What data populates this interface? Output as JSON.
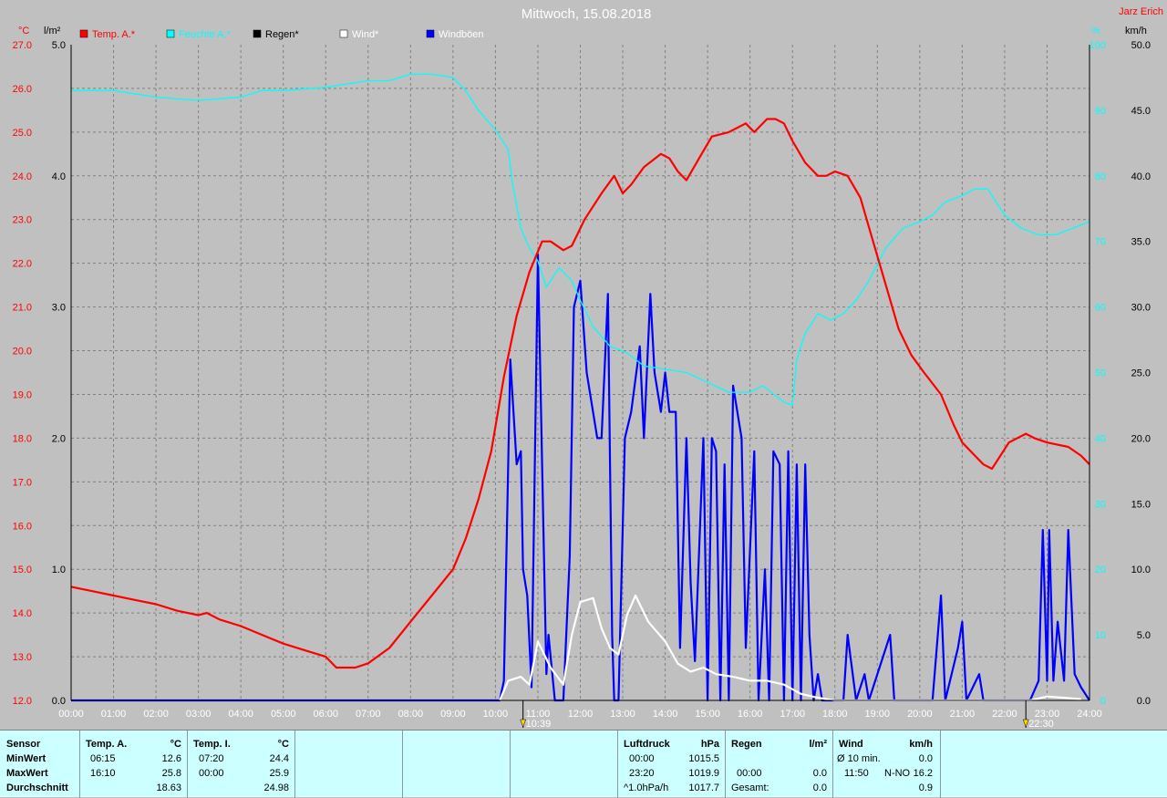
{
  "header": {
    "title": "Mittwoch, 15.08.2018",
    "author": "Jarz Erich",
    "left_unit_temp": "°C",
    "left_unit_rain": "l/m²",
    "right_unit_pct": "%",
    "right_unit_speed": "km/h"
  },
  "legend": [
    {
      "label": "Temp. A.*",
      "color": "#ff0000",
      "text_color": "#ff0000"
    },
    {
      "label": "Feuchte A.*",
      "color": "#00ffff",
      "text_color": "#00ffff"
    },
    {
      "label": "Regen*",
      "color": "#000000",
      "text_color": "#000000"
    },
    {
      "label": "Wind*",
      "color": "#ffffff",
      "text_color": "#ffffff"
    },
    {
      "label": "Windböen",
      "color": "#0000ff",
      "text_color": "#ffffff"
    }
  ],
  "events": [
    {
      "time": "10:39",
      "hour": 10.65
    },
    {
      "time": "22:30",
      "hour": 22.5
    }
  ],
  "chart_data": {
    "type": "line",
    "x_unit": "hours",
    "x_ticks": [
      "00:00",
      "01:00",
      "02:00",
      "03:00",
      "04:00",
      "05:00",
      "06:00",
      "07:00",
      "08:00",
      "09:00",
      "10:00",
      "11:00",
      "12:00",
      "13:00",
      "14:00",
      "15:00",
      "16:00",
      "17:00",
      "18:00",
      "19:00",
      "20:00",
      "21:00",
      "22:00",
      "23:00",
      "24:00"
    ],
    "xlim": [
      0,
      24
    ],
    "axes": {
      "temperature": {
        "unit": "°C",
        "lim": [
          12.0,
          27.0
        ],
        "ticks": [
          "12.0",
          "13.0",
          "14.0",
          "15.0",
          "16.0",
          "17.0",
          "18.0",
          "19.0",
          "20.0",
          "21.0",
          "22.0",
          "23.0",
          "24.0",
          "25.0",
          "26.0",
          "27.0"
        ],
        "color": "#ff0000"
      },
      "rain": {
        "unit": "l/m²",
        "lim": [
          0.0,
          5.0
        ],
        "ticks": [
          "0.0",
          "1.0",
          "2.0",
          "3.0",
          "4.0",
          "5.0"
        ],
        "color": "#000000"
      },
      "humidity": {
        "unit": "%",
        "lim": [
          0,
          100
        ],
        "ticks": [
          "0",
          "10",
          "20",
          "30",
          "40",
          "50",
          "60",
          "70",
          "80",
          "90",
          "100"
        ],
        "color": "#00ffff"
      },
      "speed": {
        "unit": "km/h",
        "lim": [
          0.0,
          50.0
        ],
        "ticks": [
          "0.0",
          "5.0",
          "10.0",
          "15.0",
          "20.0",
          "25.0",
          "30.0",
          "35.0",
          "40.0",
          "45.0",
          "50.0"
        ],
        "color": "#000000"
      }
    },
    "grid": true,
    "series": [
      {
        "name": "Temp. A.*",
        "axis": "temperature",
        "color": "#ff0000",
        "points": [
          [
            0,
            14.6
          ],
          [
            0.5,
            14.5
          ],
          [
            1,
            14.4
          ],
          [
            1.5,
            14.3
          ],
          [
            2,
            14.2
          ],
          [
            2.5,
            14.05
          ],
          [
            3,
            13.95
          ],
          [
            3.2,
            14.0
          ],
          [
            3.5,
            13.85
          ],
          [
            4,
            13.7
          ],
          [
            4.5,
            13.5
          ],
          [
            5,
            13.3
          ],
          [
            5.5,
            13.15
          ],
          [
            6,
            13.0
          ],
          [
            6.25,
            12.75
          ],
          [
            6.7,
            12.75
          ],
          [
            7,
            12.85
          ],
          [
            7.5,
            13.2
          ],
          [
            8,
            13.8
          ],
          [
            8.5,
            14.4
          ],
          [
            9,
            15.0
          ],
          [
            9.3,
            15.7
          ],
          [
            9.6,
            16.6
          ],
          [
            9.9,
            17.7
          ],
          [
            10.2,
            19.4
          ],
          [
            10.5,
            20.8
          ],
          [
            10.8,
            21.8
          ],
          [
            11.1,
            22.5
          ],
          [
            11.3,
            22.5
          ],
          [
            11.6,
            22.3
          ],
          [
            11.8,
            22.4
          ],
          [
            12.1,
            23.0
          ],
          [
            12.5,
            23.6
          ],
          [
            12.8,
            24.0
          ],
          [
            13.0,
            23.6
          ],
          [
            13.2,
            23.8
          ],
          [
            13.5,
            24.2
          ],
          [
            13.9,
            24.5
          ],
          [
            14.1,
            24.4
          ],
          [
            14.3,
            24.1
          ],
          [
            14.5,
            23.9
          ],
          [
            14.8,
            24.4
          ],
          [
            15.1,
            24.9
          ],
          [
            15.5,
            25.0
          ],
          [
            15.9,
            25.2
          ],
          [
            16.1,
            25.0
          ],
          [
            16.4,
            25.3
          ],
          [
            16.6,
            25.3
          ],
          [
            16.8,
            25.2
          ],
          [
            17.0,
            24.8
          ],
          [
            17.3,
            24.3
          ],
          [
            17.6,
            24.0
          ],
          [
            17.8,
            24.0
          ],
          [
            18.0,
            24.1
          ],
          [
            18.3,
            24.0
          ],
          [
            18.6,
            23.5
          ],
          [
            18.9,
            22.5
          ],
          [
            19.2,
            21.5
          ],
          [
            19.5,
            20.5
          ],
          [
            19.8,
            19.9
          ],
          [
            20.1,
            19.5
          ],
          [
            20.5,
            19.0
          ],
          [
            20.8,
            18.3
          ],
          [
            21.0,
            17.9
          ],
          [
            21.3,
            17.6
          ],
          [
            21.5,
            17.4
          ],
          [
            21.7,
            17.3
          ],
          [
            21.9,
            17.6
          ],
          [
            22.1,
            17.9
          ],
          [
            22.3,
            18.0
          ],
          [
            22.5,
            18.1
          ],
          [
            22.7,
            18.0
          ],
          [
            23.0,
            17.9
          ],
          [
            23.5,
            17.8
          ],
          [
            23.8,
            17.6
          ],
          [
            24.0,
            17.4
          ]
        ]
      },
      {
        "name": "Feuchte A.*",
        "axis": "humidity",
        "color": "#00ffff",
        "points": [
          [
            0,
            93
          ],
          [
            1,
            93
          ],
          [
            2,
            92
          ],
          [
            3,
            91.5
          ],
          [
            4,
            92
          ],
          [
            4.5,
            93
          ],
          [
            5,
            93
          ],
          [
            6,
            93.5
          ],
          [
            7,
            94.5
          ],
          [
            7.5,
            94.5
          ],
          [
            8,
            95.5
          ],
          [
            8.5,
            95.5
          ],
          [
            9,
            95
          ],
          [
            9.3,
            93
          ],
          [
            9.6,
            90
          ],
          [
            10,
            87
          ],
          [
            10.3,
            84
          ],
          [
            10.4,
            79
          ],
          [
            10.6,
            72
          ],
          [
            10.8,
            69
          ],
          [
            11.0,
            67
          ],
          [
            11.2,
            63
          ],
          [
            11.5,
            66
          ],
          [
            11.8,
            64
          ],
          [
            12,
            61
          ],
          [
            12.3,
            57
          ],
          [
            12.7,
            54
          ],
          [
            13.1,
            53
          ],
          [
            13.5,
            51
          ],
          [
            14,
            50.5
          ],
          [
            14.5,
            50
          ],
          [
            15,
            48.5
          ],
          [
            15.5,
            47
          ],
          [
            16,
            47
          ],
          [
            16.3,
            48
          ],
          [
            16.5,
            47
          ],
          [
            16.7,
            46
          ],
          [
            16.8,
            45.5
          ],
          [
            17.0,
            45
          ],
          [
            17.1,
            52
          ],
          [
            17.3,
            56
          ],
          [
            17.6,
            59
          ],
          [
            17.9,
            58
          ],
          [
            18.2,
            59
          ],
          [
            18.5,
            61
          ],
          [
            18.8,
            64
          ],
          [
            19.2,
            69
          ],
          [
            19.6,
            72
          ],
          [
            20,
            73
          ],
          [
            20.3,
            74
          ],
          [
            20.6,
            76
          ],
          [
            21,
            77
          ],
          [
            21.3,
            78
          ],
          [
            21.6,
            78
          ],
          [
            22,
            74
          ],
          [
            22.4,
            72
          ],
          [
            22.8,
            71
          ],
          [
            23.2,
            71
          ],
          [
            23.6,
            72
          ],
          [
            24,
            73
          ]
        ]
      },
      {
        "name": "Wind*",
        "axis": "speed",
        "color": "#ffffff",
        "points": [
          [
            10.1,
            0
          ],
          [
            10.3,
            1.5
          ],
          [
            10.6,
            1.8
          ],
          [
            10.8,
            1.2
          ],
          [
            11.0,
            4.5
          ],
          [
            11.3,
            2.5
          ],
          [
            11.6,
            1.2
          ],
          [
            11.8,
            5.0
          ],
          [
            12.0,
            7.5
          ],
          [
            12.3,
            7.8
          ],
          [
            12.5,
            5.5
          ],
          [
            12.7,
            4.0
          ],
          [
            12.9,
            3.5
          ],
          [
            13.1,
            6.5
          ],
          [
            13.3,
            8.0
          ],
          [
            13.6,
            6.0
          ],
          [
            14.0,
            4.5
          ],
          [
            14.3,
            2.8
          ],
          [
            14.6,
            2.2
          ],
          [
            14.9,
            2.5
          ],
          [
            15.2,
            2.0
          ],
          [
            15.6,
            1.8
          ],
          [
            16.0,
            1.5
          ],
          [
            16.4,
            1.5
          ],
          [
            16.8,
            1.2
          ],
          [
            17.2,
            0.5
          ],
          [
            17.6,
            0.2
          ],
          [
            18.0,
            0
          ],
          [
            18.5,
            0
          ],
          [
            22.6,
            0
          ],
          [
            23.0,
            0.3
          ],
          [
            23.4,
            0.2
          ],
          [
            23.8,
            0.1
          ]
        ]
      },
      {
        "name": "Windböen",
        "axis": "speed",
        "color": "#0000ff",
        "points": [
          [
            0,
            0
          ],
          [
            10.1,
            0
          ],
          [
            10.2,
            1.5
          ],
          [
            10.35,
            26
          ],
          [
            10.5,
            18
          ],
          [
            10.6,
            19
          ],
          [
            10.65,
            10
          ],
          [
            10.75,
            8
          ],
          [
            10.85,
            1
          ],
          [
            11.0,
            34
          ],
          [
            11.1,
            18
          ],
          [
            11.2,
            2
          ],
          [
            11.25,
            5
          ],
          [
            11.4,
            0
          ],
          [
            11.6,
            0
          ],
          [
            11.75,
            11
          ],
          [
            11.85,
            30
          ],
          [
            12.0,
            32
          ],
          [
            12.15,
            25
          ],
          [
            12.4,
            20
          ],
          [
            12.5,
            20
          ],
          [
            12.65,
            31
          ],
          [
            12.75,
            5
          ],
          [
            12.8,
            0
          ],
          [
            12.9,
            0
          ],
          [
            13.05,
            20
          ],
          [
            13.2,
            22
          ],
          [
            13.4,
            27
          ],
          [
            13.5,
            20
          ],
          [
            13.65,
            31
          ],
          [
            13.75,
            25
          ],
          [
            13.9,
            22
          ],
          [
            14.0,
            25
          ],
          [
            14.1,
            22
          ],
          [
            14.25,
            22
          ],
          [
            14.35,
            4
          ],
          [
            14.5,
            20
          ],
          [
            14.6,
            9
          ],
          [
            14.7,
            3
          ],
          [
            14.9,
            20
          ],
          [
            15.0,
            0
          ],
          [
            15.1,
            20
          ],
          [
            15.2,
            19
          ],
          [
            15.3,
            0
          ],
          [
            15.4,
            18
          ],
          [
            15.5,
            0
          ],
          [
            15.6,
            24
          ],
          [
            15.8,
            20
          ],
          [
            15.9,
            4
          ],
          [
            16.1,
            19
          ],
          [
            16.2,
            0
          ],
          [
            16.35,
            10
          ],
          [
            16.45,
            0
          ],
          [
            16.55,
            19
          ],
          [
            16.7,
            18
          ],
          [
            16.8,
            0
          ],
          [
            16.9,
            19
          ],
          [
            17.0,
            0
          ],
          [
            17.1,
            18
          ],
          [
            17.2,
            0
          ],
          [
            17.3,
            18
          ],
          [
            17.4,
            5
          ],
          [
            17.5,
            0
          ],
          [
            17.6,
            2
          ],
          [
            17.7,
            0
          ],
          [
            18.2,
            0
          ],
          [
            18.3,
            5
          ],
          [
            18.5,
            0
          ],
          [
            18.7,
            2
          ],
          [
            18.8,
            0
          ],
          [
            19.3,
            5
          ],
          [
            19.4,
            0
          ],
          [
            20.3,
            0
          ],
          [
            20.5,
            8
          ],
          [
            20.6,
            0
          ],
          [
            20.9,
            4
          ],
          [
            21.0,
            6
          ],
          [
            21.1,
            0
          ],
          [
            21.4,
            2
          ],
          [
            21.5,
            0
          ],
          [
            22.6,
            0
          ],
          [
            22.8,
            1.5
          ],
          [
            22.9,
            13
          ],
          [
            23.0,
            1.5
          ],
          [
            23.05,
            13
          ],
          [
            23.15,
            1.5
          ],
          [
            23.25,
            6
          ],
          [
            23.4,
            1.5
          ],
          [
            23.5,
            13
          ],
          [
            23.65,
            2
          ],
          [
            23.8,
            1
          ],
          [
            24.0,
            0
          ]
        ]
      }
    ]
  },
  "stats": {
    "sensor": {
      "header": "Sensor",
      "rows": [
        "MinWert",
        "MaxWert",
        "Durchschnitt"
      ]
    },
    "temp_a": {
      "header": "Temp. A.",
      "unit": "°C",
      "times": [
        "06:15",
        "16:10",
        ""
      ],
      "values": [
        "12.6",
        "25.8",
        "18.63"
      ]
    },
    "temp_i": {
      "header": "Temp. I.",
      "unit": "°C",
      "times": [
        "07:20",
        "00:00",
        ""
      ],
      "values": [
        "24.4",
        "25.9",
        "24.98"
      ]
    },
    "pressure": {
      "header": "Luftdruck",
      "unit": "hPa",
      "times": [
        "00:00",
        "23:20",
        "^1.0hPa/h"
      ],
      "values": [
        "1015.5",
        "1019.9",
        "1017.7"
      ]
    },
    "rain": {
      "header": "Regen",
      "unit": "l/m²",
      "times": [
        "",
        "00:00",
        "Gesamt:"
      ],
      "values": [
        "",
        "0.0",
        "0.0"
      ]
    },
    "wind": {
      "header": "Wind",
      "unit": "km/h",
      "times": [
        "Ø 10 min.",
        "11:50",
        ""
      ],
      "dirs": [
        "",
        "N-NO",
        ""
      ],
      "values": [
        "0.0",
        "16.2",
        "0.9"
      ]
    }
  }
}
